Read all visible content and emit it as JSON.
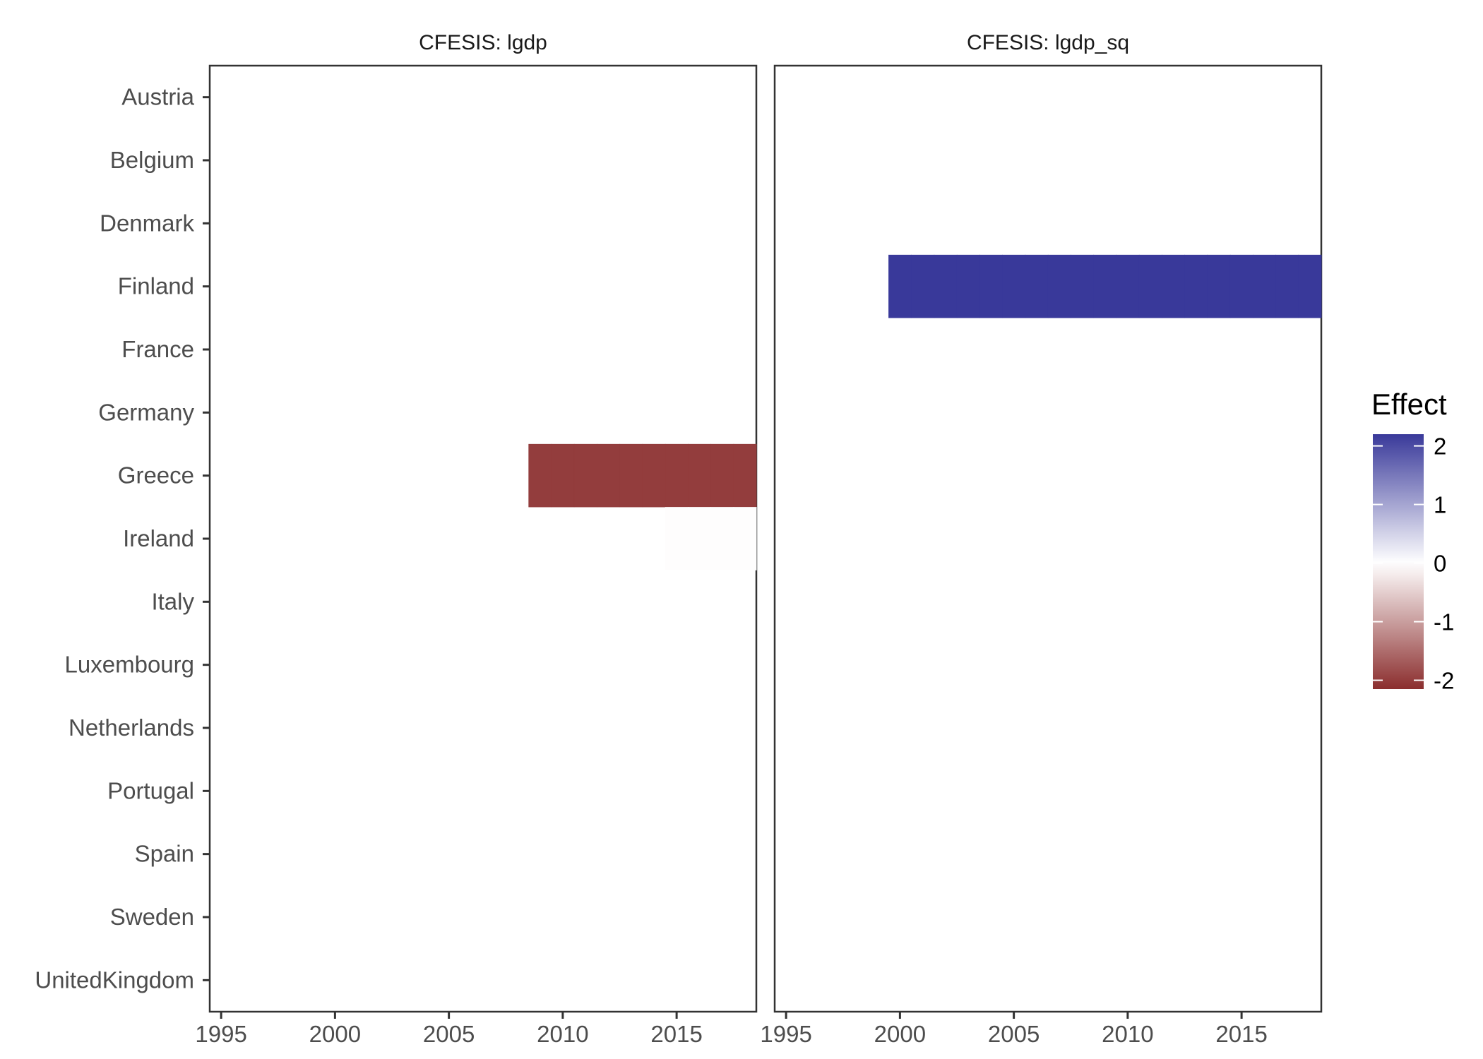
{
  "chart_data": {
    "type": "heatmap",
    "facets": [
      {
        "title": "CFESIS: lgdp",
        "cells": [
          {
            "country": "Greece",
            "x_start": 2008.5,
            "x_end": 2018.5,
            "value": -2.0
          },
          {
            "country": "Ireland",
            "x_start": 2014.5,
            "x_end": 2018.5,
            "value": -0.02
          }
        ]
      },
      {
        "title": "CFESIS: lgdp_sq",
        "cells": [
          {
            "country": "Finland",
            "x_start": 1999.5,
            "x_end": 2018.5,
            "value": 2.2
          }
        ]
      }
    ],
    "y_categories": [
      "Austria",
      "Belgium",
      "Denmark",
      "Finland",
      "France",
      "Germany",
      "Greece",
      "Ireland",
      "Italy",
      "Luxembourg",
      "Netherlands",
      "Portugal",
      "Spain",
      "Sweden",
      "UnitedKingdom"
    ],
    "x_ticks": [
      1995,
      2000,
      2005,
      2010,
      2015
    ],
    "x_tick_labels": [
      "1995",
      "2000",
      "2005",
      "2010",
      "2015"
    ],
    "xlim": [
      1994.5,
      2018.5
    ],
    "xlabel": "",
    "ylabel": "",
    "grid": false,
    "legend": {
      "title": "Effect",
      "position": "right",
      "ticks": [
        2,
        1,
        0,
        -1,
        -2
      ],
      "tick_labels": [
        "2",
        "1",
        "0",
        "-1",
        "-2"
      ],
      "range": [
        -2.15,
        2.2
      ],
      "colors": {
        "low": "#8B2E2E",
        "mid": "#FFFFFF",
        "high": "#39399A"
      }
    }
  }
}
